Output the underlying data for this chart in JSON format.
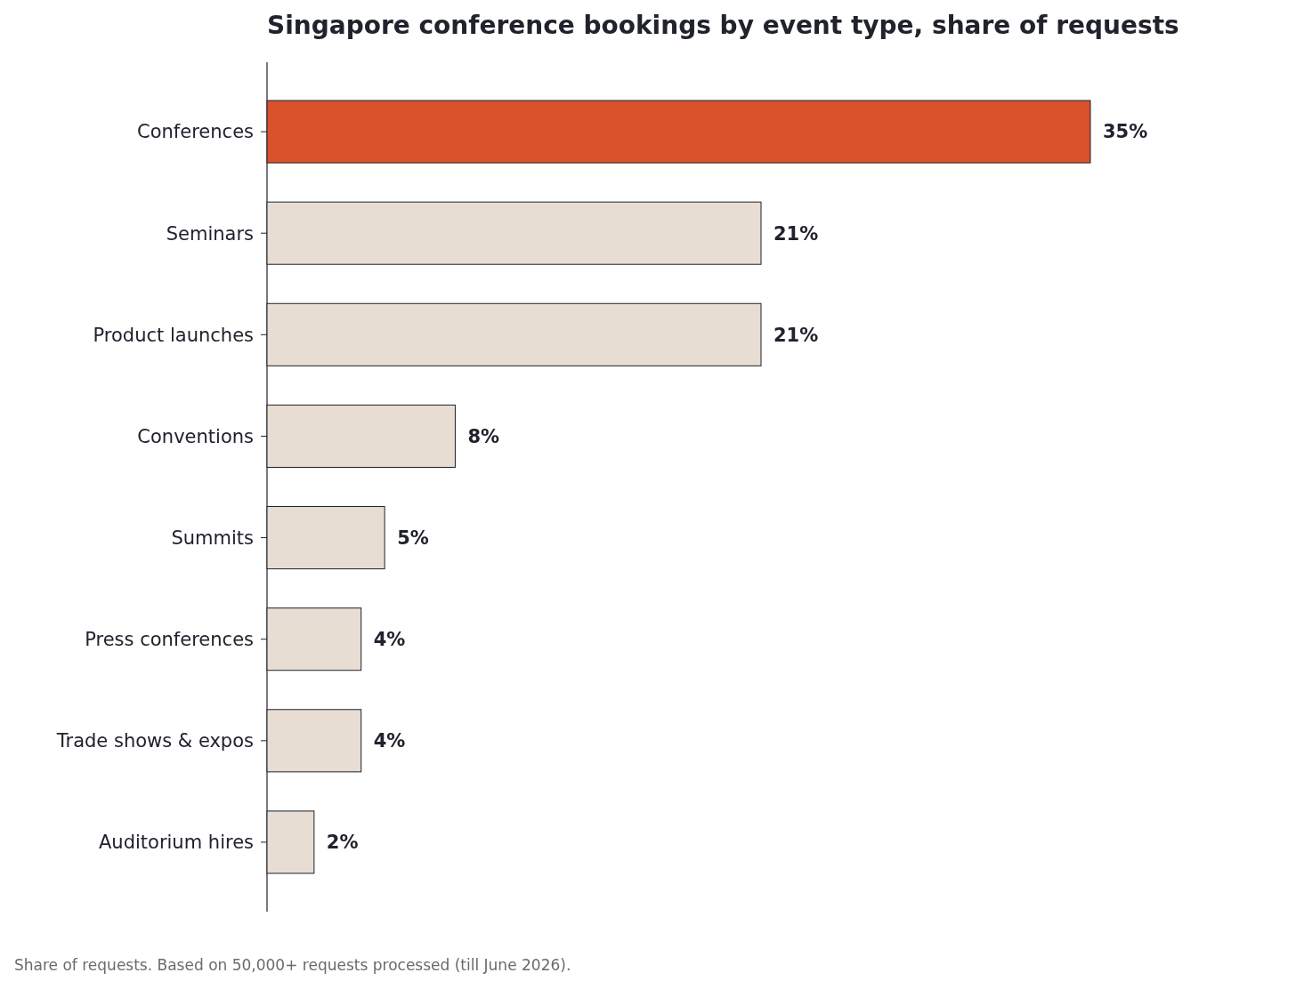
{
  "chart_data": {
    "type": "bar",
    "orientation": "horizontal",
    "title": "Singapore conference bookings by event type, share of requests",
    "categories": [
      "Conferences",
      "Seminars",
      "Product launches",
      "Conventions",
      "Summits",
      "Press conferences",
      "Trade shows & expos",
      "Auditorium hires"
    ],
    "values": [
      35,
      21,
      21,
      8,
      5,
      4,
      4,
      2
    ],
    "value_labels": [
      "35%",
      "21%",
      "21%",
      "8%",
      "5%",
      "4%",
      "4%",
      "2%"
    ],
    "colors": [
      "#d9522c",
      "#e7ddd3",
      "#e7ddd3",
      "#e7ddd3",
      "#e7ddd3",
      "#e7ddd3",
      "#e7ddd3",
      "#e7ddd3"
    ],
    "annotations": [
      "Share of requests. Based on 50,000+ requests processed (till June 2026)."
    ]
  }
}
